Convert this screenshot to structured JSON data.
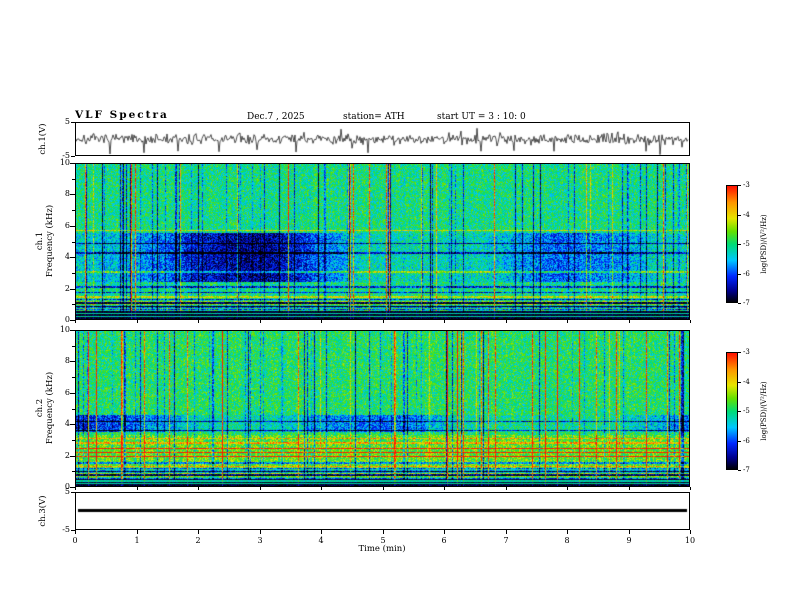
{
  "header": {
    "title": "VLF  Spectra",
    "date": "Dec.7  , 2025",
    "station": "station= ATH",
    "start_ut": "start UT =  3 : 10: 0"
  },
  "xaxis": {
    "label": "Time (min)",
    "ticks": [
      0,
      1,
      2,
      3,
      4,
      5,
      6,
      7,
      8,
      9,
      10
    ],
    "range": [
      0,
      10
    ]
  },
  "panels": {
    "wave1": {
      "ylabel": "ch.1(V)",
      "yticks": [
        5,
        -5
      ],
      "ylim": [
        -5,
        5
      ]
    },
    "spec1": {
      "ylabel_line1": "ch.1",
      "ylabel_line2": "Frequency (kHz)",
      "yticks": [
        0,
        2,
        4,
        6,
        8,
        10
      ],
      "ylim": [
        0,
        10
      ]
    },
    "spec2": {
      "ylabel_line1": "ch.2",
      "ylabel_line2": "Frequency (kHz)",
      "yticks": [
        0,
        2,
        4,
        6,
        8,
        10
      ],
      "ylim": [
        0,
        10
      ]
    },
    "wave3": {
      "ylabel": "ch.3(V)",
      "yticks": [
        5,
        -5
      ],
      "ylim": [
        -5,
        5
      ]
    }
  },
  "colorbar": {
    "label": "log(PSD)/(V²/Hz)",
    "ticks": [
      -3,
      -4,
      -5,
      -6,
      -7
    ],
    "range": [
      -7,
      -3
    ],
    "stops": [
      {
        "v": -7.0,
        "c": "#000000"
      },
      {
        "v": -6.6,
        "c": "#00008c"
      },
      {
        "v": -6.1,
        "c": "#0028ff"
      },
      {
        "v": -5.55,
        "c": "#00c8ff"
      },
      {
        "v": -5.0,
        "c": "#00dc78"
      },
      {
        "v": -4.55,
        "c": "#64e100"
      },
      {
        "v": -4.1,
        "c": "#e6e600"
      },
      {
        "v": -3.55,
        "c": "#ff9600"
      },
      {
        "v": -3.0,
        "c": "#ff1400"
      }
    ]
  },
  "chart_data": [
    {
      "id": "ch1_waveform",
      "type": "line",
      "channel": "ch.1",
      "ylabel": "ch.1(V)",
      "xlabel": "Time (min)",
      "xlim": [
        0,
        10
      ],
      "ylim": [
        -5,
        5
      ],
      "signal": {
        "baseline_V": 0,
        "noise_amp_V": 1.6,
        "spike_prob": 0.04,
        "spike_amp_V_min": -5,
        "spike_amp_V_max": 3.5,
        "description": "broadband noise centered on 0 V with frequent impulsive spikes, mostly negative, reaching the -5 V rail"
      }
    },
    {
      "id": "ch1_spectrogram",
      "type": "heatmap",
      "channel": "ch.1",
      "ylabel": "Frequency (kHz)",
      "xlabel": "Time (min)",
      "xlim": [
        0,
        10
      ],
      "ylim": [
        0,
        10
      ],
      "value_label": "log(PSD)/(V²/Hz)",
      "vlim": [
        -7,
        -3
      ],
      "features": {
        "background_level": -5.05,
        "black_band_kHz": [
          0,
          0.55
        ],
        "stripe_zone_kHz": [
          0.55,
          1.2
        ],
        "attenuated_band_kHz": [
          2.4,
          5.6
        ],
        "attenuated_level": -6.3,
        "bright_hlines_kHz": [
          0.18,
          0.38,
          1.45,
          3.05,
          5.75
        ],
        "dark_hlines_kHz": [
          0.8,
          1.05,
          1.3,
          1.75,
          2.1,
          4.3,
          4.9
        ],
        "hot_hlines_kHz": [],
        "vertical_bright_streak_fraction": 0.05,
        "vertical_dark_streak_fraction": 0.12,
        "description": "green/cyan speckled background, dense vertical impulsive streaks, deep-blue attenuated band 2.4-5.6 kHz, black band below 0.55 kHz with thin bright stripes"
      }
    },
    {
      "id": "ch2_spectrogram",
      "type": "heatmap",
      "channel": "ch.2",
      "ylabel": "Frequency (kHz)",
      "xlabel": "Time (min)",
      "xlim": [
        0,
        10
      ],
      "ylim": [
        0,
        10
      ],
      "value_label": "log(PSD)/(V²/Hz)",
      "vlim": [
        -7,
        -3
      ],
      "features": {
        "background_level": -4.95,
        "black_band_kHz": [
          0,
          0.5
        ],
        "stripe_zone_kHz": [
          0.5,
          1.2
        ],
        "attenuated_band_kHz": [
          3.5,
          4.6
        ],
        "attenuated_level": -5.9,
        "band_enhanced_kHz": [
          1.2,
          3.3
        ],
        "enhanced_delta": 0.35,
        "bright_hlines_kHz": [
          0.18,
          0.35,
          1.3,
          2.8,
          3.1
        ],
        "dark_hlines_kHz": [
          0.75,
          1.0,
          1.5,
          3.6,
          4.2
        ],
        "hot_hlines_kHz": [
          1.95,
          2.2,
          2.45
        ],
        "vertical_bright_streak_fraction": 0.05,
        "vertical_dark_streak_fraction": 0.1,
        "description": "green speckled background with strong horizontal banding 0.5-3.3 kHz, hot orange/red lines near 2 kHz, weak blue band 3.5-4.6 kHz, black band below 0.5 kHz"
      }
    },
    {
      "id": "ch3_waveform",
      "type": "line",
      "channel": "ch.3",
      "ylabel": "ch.3(V)",
      "xlabel": "Time (min)",
      "xlim": [
        0,
        10
      ],
      "ylim": [
        -5,
        5
      ],
      "signal": {
        "constant_V": 0,
        "description": "flat thick black line at 0 V (no signal)"
      }
    }
  ]
}
